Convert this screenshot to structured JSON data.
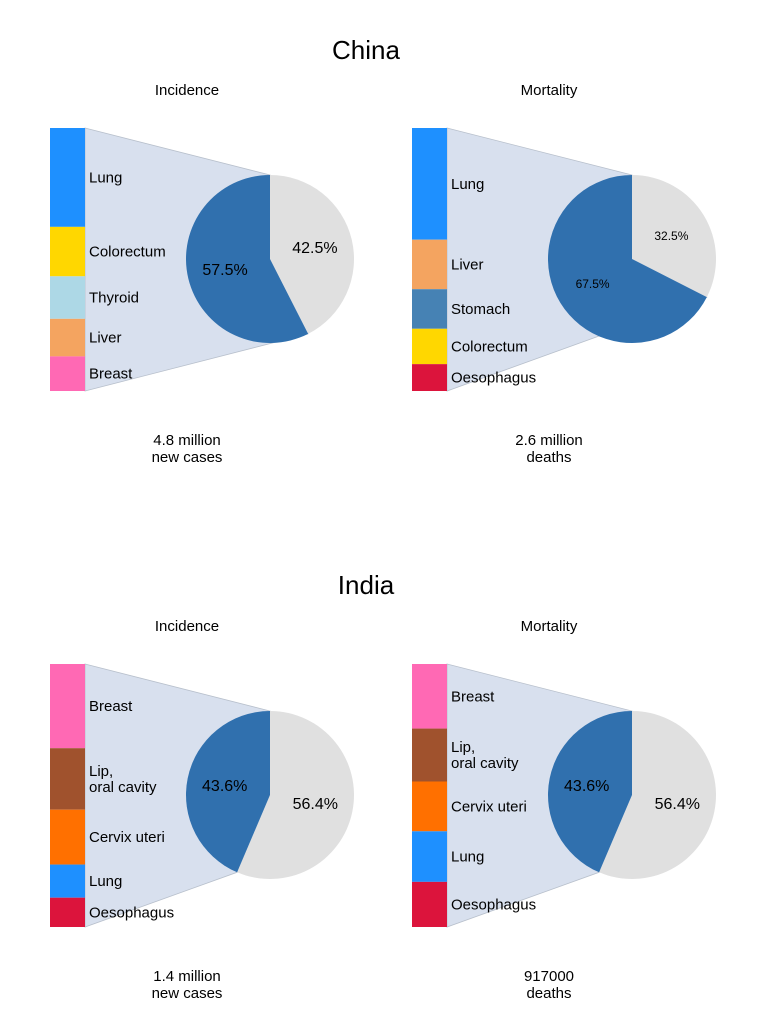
{
  "colors": {
    "pie_main": "#3070AE",
    "pie_rest": "#E0E0E0",
    "connector": "#D8E0EE",
    "Lung": "#1E90FF",
    "Colorectum": "#FFD700",
    "Thyroid": "#ADD8E6",
    "Liver": "#F4A460",
    "Breast": "#FF69B4",
    "Stomach": "#4682B4",
    "Oesophagus": "#DC143C",
    "Lip,\noral cavity": "#A0522D",
    "Cervix uteri": "#FF7000"
  },
  "chart_data": [
    {
      "type": "pie",
      "country": "China",
      "title": "Incidence",
      "total_label": "4.8 million\nnew cases",
      "slices": [
        {
          "label": "57.5%",
          "value": 57.5
        },
        {
          "label": "42.5%",
          "value": 42.5
        }
      ],
      "breakdown": [
        {
          "name": "Lung",
          "value": 1.0
        },
        {
          "name": "Colorectum",
          "value": 0.5
        },
        {
          "name": "Thyroid",
          "value": 0.43
        },
        {
          "name": "Liver",
          "value": 0.38
        },
        {
          "name": "Breast",
          "value": 0.35
        }
      ]
    },
    {
      "type": "pie",
      "country": "China",
      "title": "Mortality",
      "total_label": "2.6 million\ndeaths",
      "slices": [
        {
          "label": "67.5%",
          "value": 67.5
        },
        {
          "label": "32.5%",
          "value": 32.5
        }
      ],
      "breakdown": [
        {
          "name": "Lung",
          "value": 0.79
        },
        {
          "name": "Liver",
          "value": 0.35
        },
        {
          "name": "Stomach",
          "value": 0.28
        },
        {
          "name": "Colorectum",
          "value": 0.25
        },
        {
          "name": "Oesophagus",
          "value": 0.19
        }
      ]
    },
    {
      "type": "pie",
      "country": "India",
      "title": "Incidence",
      "total_label": "1.4 million\nnew cases",
      "slices": [
        {
          "label": "43.6%",
          "value": 43.6
        },
        {
          "label": "56.4%",
          "value": 56.4
        }
      ],
      "breakdown": [
        {
          "name": "Breast",
          "value": 0.178
        },
        {
          "name": "Lip,\noral cavity",
          "value": 0.13
        },
        {
          "name": "Cervix uteri",
          "value": 0.116
        },
        {
          "name": "Lung",
          "value": 0.07
        },
        {
          "name": "Oesophagus",
          "value": 0.062
        }
      ]
    },
    {
      "type": "pie",
      "country": "India",
      "title": "Mortality",
      "total_label": "917000\ndeaths",
      "slices": [
        {
          "label": "43.6%",
          "value": 43.6
        },
        {
          "label": "56.4%",
          "value": 56.4
        }
      ],
      "breakdown": [
        {
          "name": "Breast",
          "value": 0.083
        },
        {
          "name": "Lip,\noral cavity",
          "value": 0.068
        },
        {
          "name": "Cervix uteri",
          "value": 0.064
        },
        {
          "name": "Lung",
          "value": 0.065
        },
        {
          "name": "Oesophagus",
          "value": 0.058
        }
      ]
    }
  ]
}
